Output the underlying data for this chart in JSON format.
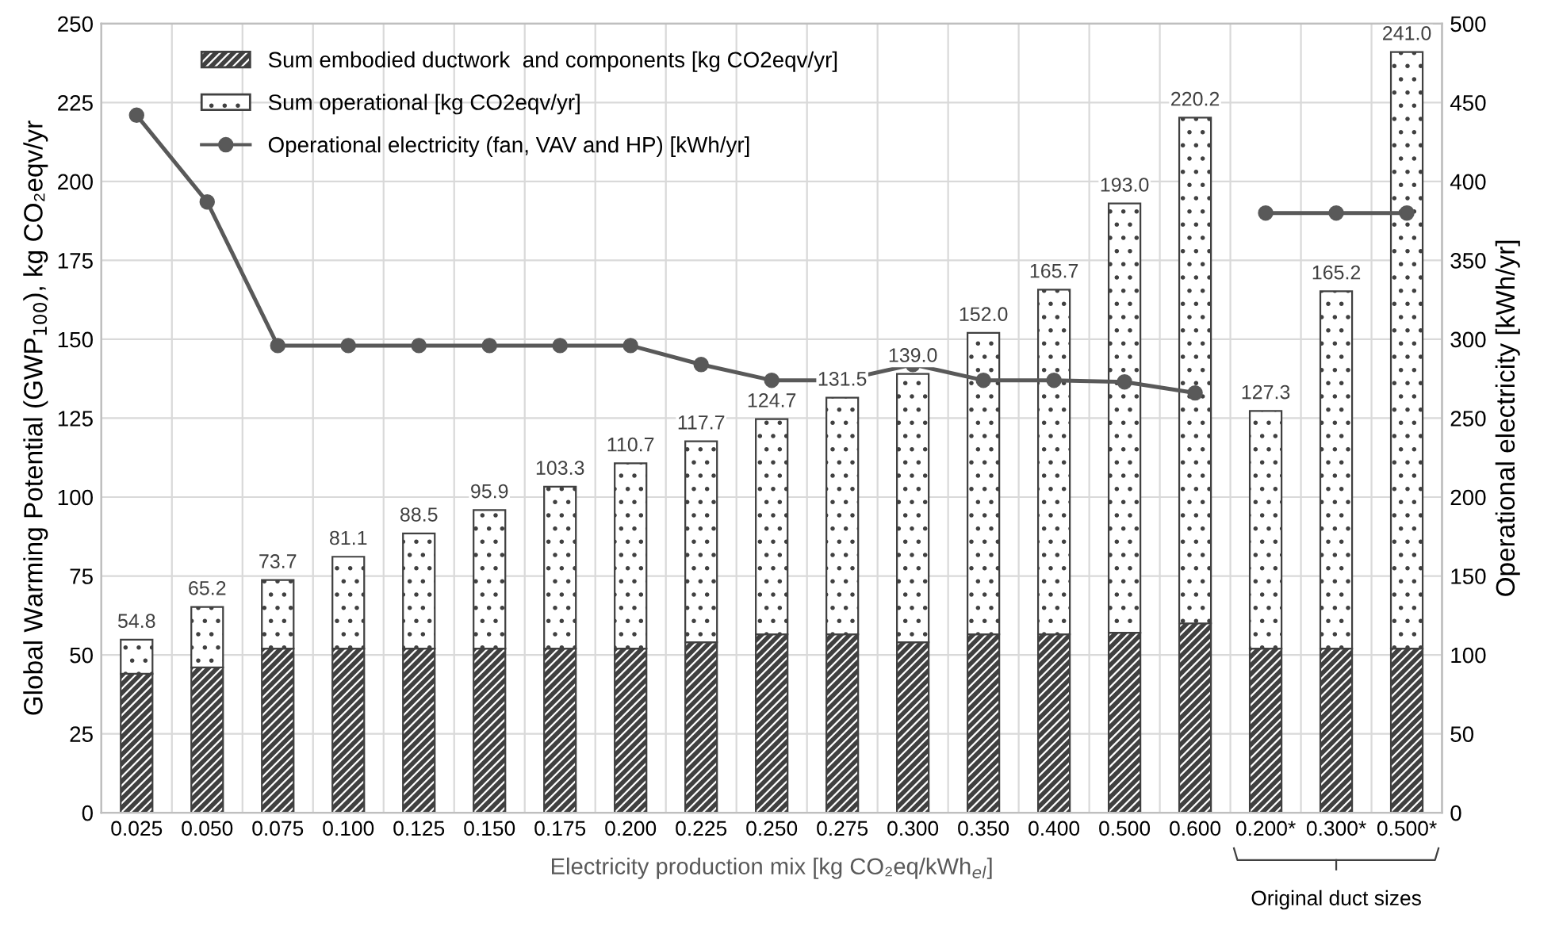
{
  "chart_data": {
    "type": "bar",
    "stacked": true,
    "categories": [
      "0.025",
      "0.050",
      "0.075",
      "0.100",
      "0.125",
      "0.150",
      "0.175",
      "0.200",
      "0.225",
      "0.250",
      "0.275",
      "0.300",
      "0.350",
      "0.400",
      "0.500",
      "0.600",
      "0.200*",
      "0.300*",
      "0.500*"
    ],
    "xlabel": "Electricity production mix [kg CO₂eq/kWh$_{el}$]",
    "ylabel": "Global Warming Potential (GWP$_{100}$), kg CO₂eqv/yr",
    "y2label": "Operational electricity [kWh/yr]",
    "series": [
      {
        "name": "Sum embodied ductwork  and components [kg CO2eqv/yr]",
        "color": "#404040",
        "values": [
          44,
          46,
          52,
          52,
          52,
          52,
          52,
          52,
          54,
          56.5,
          56.5,
          54,
          56.5,
          56.5,
          57,
          60,
          52,
          52,
          52
        ]
      },
      {
        "name": "Sum operational [kg CO2eqv/yr]",
        "color": "#404040",
        "values": [
          10.8,
          19.2,
          21.7,
          29.1,
          36.5,
          43.9,
          51.3,
          58.7,
          63.7,
          68.2,
          75.0,
          85.0,
          95.5,
          109.2,
          136.0,
          160.2,
          75.3,
          113.2,
          189.0
        ]
      },
      {
        "name": "Operational electricity (fan, VAV and HP) [kWh/yr]",
        "type": "line",
        "axis": "y2",
        "color": "#595959",
        "marker": "circle",
        "line_style": "solid",
        "values": [
          442,
          387,
          296,
          296,
          296,
          296,
          296,
          296,
          284,
          274,
          274,
          284,
          274,
          274,
          273,
          266,
          null,
          null,
          null
        ]
      },
      {
        "type": "line",
        "axis": "y2",
        "color": "#595959",
        "marker": "circle",
        "line_style": "solid",
        "values": [
          null,
          null,
          null,
          null,
          null,
          null,
          null,
          null,
          null,
          null,
          null,
          null,
          null,
          null,
          null,
          null,
          380,
          380,
          380
        ]
      }
    ],
    "totals": [
      "54.8",
      "65.2",
      "73.7",
      "81.1",
      "88.5",
      "95.9",
      "103.3",
      "110.7",
      "117.7",
      "124.7",
      "131.5",
      "139.0",
      "152.0",
      "165.7",
      "193.0",
      "220.2",
      "127.3",
      "165.2",
      "241.0"
    ],
    "ylim": [
      0,
      250
    ],
    "yticks": [
      0,
      25,
      50,
      75,
      100,
      125,
      150,
      175,
      200,
      225,
      250
    ],
    "y2lim": [
      0,
      500
    ],
    "y2ticks": [
      0,
      50,
      100,
      150,
      200,
      250,
      300,
      350,
      400,
      450,
      500
    ],
    "annotations": [
      "Original duct sizes"
    ],
    "grid": true,
    "legend": "top left"
  }
}
